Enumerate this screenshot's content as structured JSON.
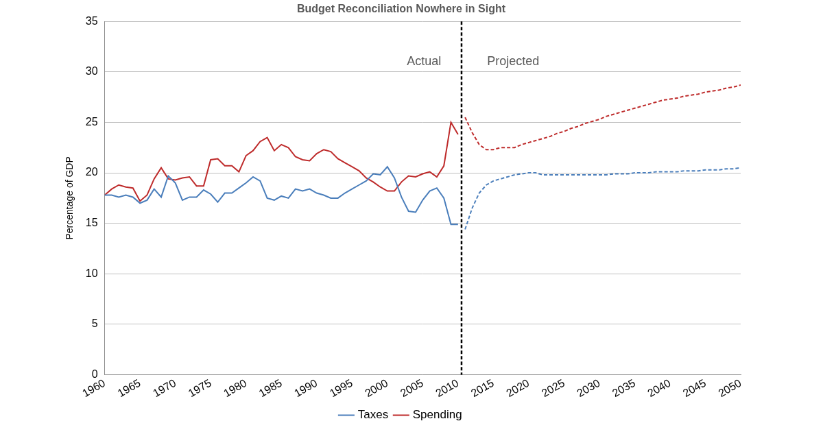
{
  "chart_data": {
    "type": "line",
    "title": "Budget Reconciliation Nowhere in Sight",
    "y_label": "Percentage of GDP",
    "x": [
      1960,
      1961,
      1962,
      1963,
      1964,
      1965,
      1966,
      1967,
      1968,
      1969,
      1970,
      1971,
      1972,
      1973,
      1974,
      1975,
      1976,
      1977,
      1978,
      1979,
      1980,
      1981,
      1982,
      1983,
      1984,
      1985,
      1986,
      1987,
      1988,
      1989,
      1990,
      1991,
      1992,
      1993,
      1994,
      1995,
      1996,
      1997,
      1998,
      1999,
      2000,
      2001,
      2002,
      2003,
      2004,
      2005,
      2006,
      2007,
      2008,
      2009,
      2010,
      2011,
      2012,
      2013,
      2014,
      2015,
      2016,
      2017,
      2018,
      2019,
      2020,
      2021,
      2022,
      2023,
      2024,
      2025,
      2026,
      2027,
      2028,
      2029,
      2030,
      2031,
      2032,
      2033,
      2034,
      2035,
      2036,
      2037,
      2038,
      2039,
      2040,
      2041,
      2042,
      2043,
      2044,
      2045,
      2046,
      2047,
      2048,
      2049,
      2050
    ],
    "series": [
      {
        "name": "Taxes",
        "color": "#4a7ebb",
        "line_style": "solid",
        "marker": "none",
        "values": [
          17.8,
          17.8,
          17.6,
          17.8,
          17.6,
          17.0,
          17.3,
          18.4,
          17.6,
          19.7,
          19.0,
          17.3,
          17.6,
          17.6,
          18.3,
          17.9,
          17.1,
          18.0,
          18.0,
          18.5,
          19.0,
          19.6,
          19.2,
          17.5,
          17.3,
          17.7,
          17.5,
          18.4,
          18.2,
          18.4,
          18.0,
          17.8,
          17.5,
          17.5,
          18.0,
          18.4,
          18.8,
          19.2,
          19.9,
          19.8,
          20.6,
          19.5,
          17.6,
          16.2,
          16.1,
          17.3,
          18.2,
          18.5,
          17.5,
          14.9,
          14.9,
          null,
          null,
          null,
          null,
          null,
          null,
          null,
          null,
          null,
          null,
          null,
          null,
          null,
          null,
          null,
          null,
          null,
          null,
          null,
          null,
          null,
          null,
          null,
          null,
          null,
          null,
          null,
          null,
          null,
          null,
          null,
          null,
          null,
          null,
          null,
          null,
          null,
          null,
          null,
          null
        ]
      },
      {
        "name": "Spending",
        "color": "#be2b2b",
        "line_style": "solid",
        "marker": "none",
        "values": [
          17.8,
          18.4,
          18.8,
          18.6,
          18.5,
          17.2,
          17.8,
          19.4,
          20.5,
          19.4,
          19.3,
          19.5,
          19.6,
          18.7,
          18.7,
          21.3,
          21.4,
          20.7,
          20.7,
          20.1,
          21.7,
          22.2,
          23.1,
          23.5,
          22.2,
          22.8,
          22.5,
          21.6,
          21.3,
          21.2,
          21.9,
          22.3,
          22.1,
          21.4,
          21.0,
          20.6,
          20.2,
          19.5,
          19.1,
          18.6,
          18.2,
          18.2,
          19.1,
          19.7,
          19.6,
          19.9,
          20.1,
          19.6,
          20.7,
          25.0,
          23.8,
          null,
          null,
          null,
          null,
          null,
          null,
          null,
          null,
          null,
          null,
          null,
          null,
          null,
          null,
          null,
          null,
          null,
          null,
          null,
          null,
          null,
          null,
          null,
          null,
          null,
          null,
          null,
          null,
          null,
          null,
          null,
          null,
          null,
          null,
          null,
          null,
          null,
          null,
          null,
          null
        ]
      },
      {
        "name": "Taxes",
        "color": "#4a7ebb",
        "line_style": "dashed",
        "marker": "none",
        "values": [
          null,
          null,
          null,
          null,
          null,
          null,
          null,
          null,
          null,
          null,
          null,
          null,
          null,
          null,
          null,
          null,
          null,
          null,
          null,
          null,
          null,
          null,
          null,
          null,
          null,
          null,
          null,
          null,
          null,
          null,
          null,
          null,
          null,
          null,
          null,
          null,
          null,
          null,
          null,
          null,
          null,
          null,
          null,
          null,
          null,
          null,
          null,
          null,
          null,
          null,
          null,
          14.4,
          16.5,
          18.0,
          18.8,
          19.2,
          19.4,
          19.6,
          19.8,
          19.9,
          20.0,
          20.0,
          19.8,
          19.8,
          19.8,
          19.8,
          19.8,
          19.8,
          19.8,
          19.8,
          19.8,
          19.8,
          19.9,
          19.9,
          19.9,
          20.0,
          20.0,
          20.0,
          20.1,
          20.1,
          20.1,
          20.1,
          20.2,
          20.2,
          20.2,
          20.3,
          20.3,
          20.3,
          20.4,
          20.4,
          20.5
        ]
      },
      {
        "name": "Spending",
        "color": "#be2b2b",
        "line_style": "dashed",
        "marker": "none",
        "values": [
          null,
          null,
          null,
          null,
          null,
          null,
          null,
          null,
          null,
          null,
          null,
          null,
          null,
          null,
          null,
          null,
          null,
          null,
          null,
          null,
          null,
          null,
          null,
          null,
          null,
          null,
          null,
          null,
          null,
          null,
          null,
          null,
          null,
          null,
          null,
          null,
          null,
          null,
          null,
          null,
          null,
          null,
          null,
          null,
          null,
          null,
          null,
          null,
          null,
          null,
          null,
          25.5,
          24.0,
          22.8,
          22.3,
          22.3,
          22.5,
          22.5,
          22.5,
          22.8,
          23.0,
          23.2,
          23.4,
          23.6,
          23.9,
          24.1,
          24.4,
          24.6,
          24.9,
          25.1,
          25.3,
          25.6,
          25.8,
          26.0,
          26.2,
          26.4,
          26.6,
          26.8,
          27.0,
          27.2,
          27.3,
          27.4,
          27.6,
          27.7,
          27.8,
          28.0,
          28.1,
          28.2,
          28.4,
          28.5,
          28.7
        ]
      }
    ],
    "xlim": [
      1960,
      2050
    ],
    "xticks": [
      1960,
      1965,
      1970,
      1975,
      1980,
      1985,
      1990,
      1995,
      2000,
      2005,
      2010,
      2015,
      2020,
      2025,
      2030,
      2035,
      2040,
      2045,
      2050
    ],
    "ylim": [
      0,
      35
    ],
    "yticks": [
      0,
      5,
      10,
      15,
      20,
      25,
      30,
      35
    ],
    "grid": "y",
    "legend": "bottom",
    "annotations": [
      {
        "type": "vline",
        "x": 2010.5,
        "line_style": "dashed"
      },
      {
        "type": "text",
        "text": "Actual",
        "x": 2005.2,
        "y": 31.0
      },
      {
        "type": "text",
        "text": "Projected",
        "x": 2017.8,
        "y": 31.0
      }
    ]
  }
}
